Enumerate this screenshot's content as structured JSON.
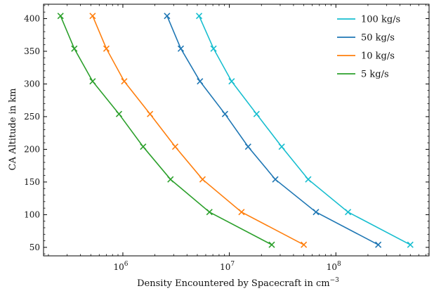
{
  "chart_data": {
    "type": "line",
    "xlabel": "Density Encountered by Spacecraft in cm",
    "xlabel_superscript": "−3",
    "ylabel": "CA Altitude in km",
    "x_scale": "log",
    "xlim": [
      180000,
      750000000
    ],
    "ylim": [
      37,
      422
    ],
    "x_ticks": [
      {
        "value": 1000000,
        "label": "10",
        "exp": "6"
      },
      {
        "value": 10000000,
        "label": "10",
        "exp": "7"
      },
      {
        "value": 100000000,
        "label": "10",
        "exp": "8"
      }
    ],
    "y_ticks": [
      50,
      100,
      150,
      200,
      250,
      300,
      350,
      400
    ],
    "grid": false,
    "legend_position": "top-right",
    "marker": "x",
    "series": [
      {
        "name": "100 kg/s",
        "color": "#17becf",
        "points": [
          [
            5200000,
            404
          ],
          [
            7100000,
            354
          ],
          [
            10500000,
            304
          ],
          [
            18000000,
            254
          ],
          [
            31000000,
            204
          ],
          [
            55000000,
            154
          ],
          [
            130000000,
            104
          ],
          [
            500000000,
            54
          ]
        ]
      },
      {
        "name": "50 kg/s",
        "color": "#1f77b4",
        "points": [
          [
            2600000,
            404
          ],
          [
            3500000,
            354
          ],
          [
            5300000,
            304
          ],
          [
            9100000,
            254
          ],
          [
            15000000,
            204
          ],
          [
            27000000,
            154
          ],
          [
            65000000,
            104
          ],
          [
            250000000,
            54
          ]
        ]
      },
      {
        "name": "10 kg/s",
        "color": "#ff7f0e",
        "points": [
          [
            520000,
            404
          ],
          [
            700000,
            354
          ],
          [
            1030000,
            304
          ],
          [
            1800000,
            254
          ],
          [
            3100000,
            204
          ],
          [
            5600000,
            154
          ],
          [
            13000000,
            104
          ],
          [
            50000000,
            54
          ]
        ]
      },
      {
        "name": "5 kg/s",
        "color": "#2ca02c",
        "points": [
          [
            260000,
            404
          ],
          [
            350000,
            354
          ],
          [
            520000,
            304
          ],
          [
            920000,
            254
          ],
          [
            1550000,
            204
          ],
          [
            2800000,
            154
          ],
          [
            6500000,
            104
          ],
          [
            25000000,
            54
          ]
        ]
      }
    ]
  }
}
